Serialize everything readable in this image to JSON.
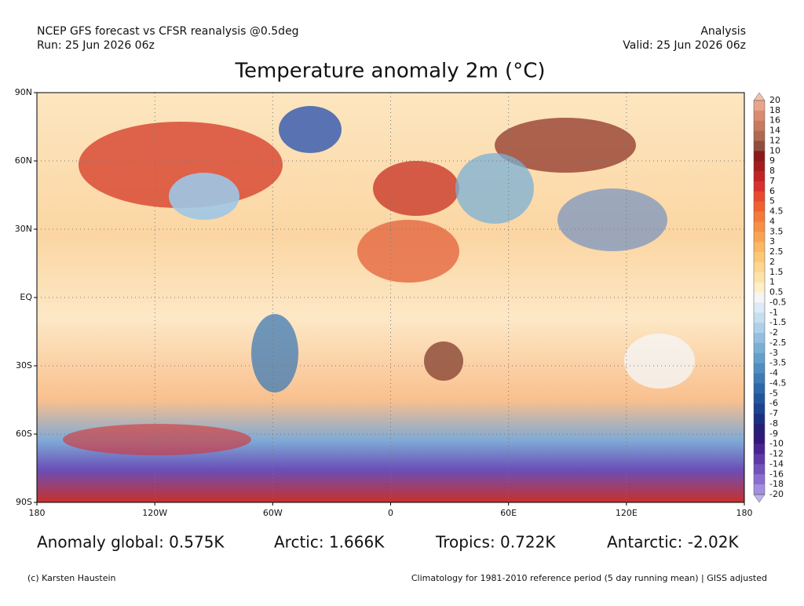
{
  "header": {
    "left_line1": "NCEP GFS forecast vs CFSR reanalysis @0.5deg",
    "left_line2": "Run: 25 Jun 2026 06z",
    "right_line1": "Analysis",
    "right_line2": "Valid: 25 Jun 2026 06z",
    "title": "Temperature anomaly 2m (°C)"
  },
  "map": {
    "lat_labels": [
      "90N",
      "60N",
      "30N",
      "EQ",
      "30S",
      "60S",
      "90S"
    ],
    "lon_labels": [
      "180",
      "120W",
      "60W",
      "0",
      "60E",
      "120E",
      "180"
    ]
  },
  "colorbar": {
    "labels": [
      "20",
      "18",
      "16",
      "14",
      "12",
      "10",
      "9",
      "8",
      "7",
      "6",
      "5",
      "4.5",
      "4",
      "3.5",
      "3",
      "2.5",
      "2",
      "1.5",
      "1",
      "0.5",
      "-0.5",
      "-1",
      "-1.5",
      "-2",
      "-2.5",
      "-3",
      "-3.5",
      "-4",
      "-4.5",
      "-5",
      "-6",
      "-7",
      "-8",
      "-9",
      "-10",
      "-12",
      "-14",
      "-16",
      "-18",
      "-20"
    ],
    "colors": [
      "#f4c0a8",
      "#e8a58a",
      "#d88c70",
      "#c77a5f",
      "#b06850",
      "#8f4f3c",
      "#8b1a1a",
      "#a51c1c",
      "#c22424",
      "#d93030",
      "#e84a2f",
      "#f06030",
      "#f47a3a",
      "#f78f45",
      "#f9a455",
      "#fbb865",
      "#fcc878",
      "#fdd78e",
      "#fee3a8",
      "#feefc5",
      "#f5f5f5",
      "#dcebf7",
      "#c5dff0",
      "#aed1ea",
      "#93c0e0",
      "#7bb0d6",
      "#659fcc",
      "#518dc1",
      "#3f7bb6",
      "#2f68aa",
      "#23559d",
      "#1d4290",
      "#1b3080",
      "#261f75",
      "#33187a",
      "#4a2591",
      "#5d3aa8",
      "#7253bd",
      "#8a6fd0",
      "#a48ee0",
      "#c0b2ec"
    ]
  },
  "stats": [
    "Anomaly global: 0.575K",
    "Arctic: 1.666K",
    "Tropics: 0.722K",
    "Antarctic: -2.02K"
  ],
  "footer": {
    "left": "(c) Karsten Haustein",
    "right": "Climatology for 1981-2010 reference period (5 day running mean) | GISS adjusted"
  }
}
